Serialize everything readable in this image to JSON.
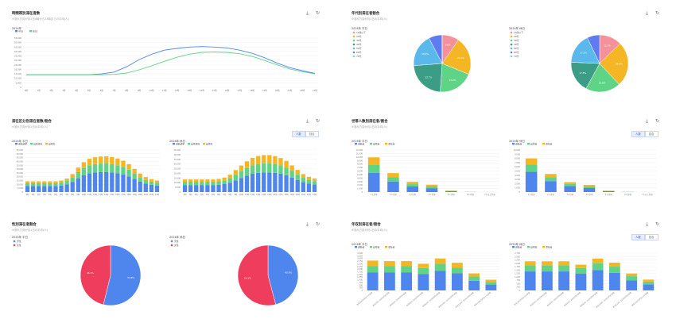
{
  "colors": {
    "blue": "#4e86ee",
    "green": "#5fd487",
    "yellow": "#f5b626",
    "pink": "#f4919b",
    "teal": "#3c9d87",
    "sky": "#5bb8ea",
    "lightgreen": "#7ce3a5",
    "red": "#ee3d5d",
    "slateblue": "#5f7bf0"
  },
  "icons": {
    "download": "download-icon",
    "refresh": "refresh-icon"
  },
  "toggle": {
    "a": "人数",
    "b": "割合"
  },
  "panels": [
    {
      "title": "時間帯別滞在者数",
      "subtitle": "※流れ方向が月1日0時から23時までの平均(人)",
      "charts": [
        {
          "type": "line",
          "title": "2024年",
          "categories": [
            "0時",
            "1時",
            "2時",
            "3時",
            "4時",
            "5時",
            "6時",
            "7時",
            "8時",
            "9時",
            "10時",
            "11時",
            "12時",
            "13時",
            "14時",
            "15時",
            "16時",
            "17時",
            "18時",
            "19時",
            "20時",
            "21時",
            "22時",
            "23時"
          ],
          "yticks": [
            "55,000",
            "50,000",
            "45,000",
            "40,000",
            "35,000",
            "30,000",
            "25,000",
            "20,000",
            "15,000",
            "10,000",
            "5,000",
            "0"
          ],
          "ylim": [
            0,
            55000
          ],
          "series": [
            {
              "name": "平日",
              "color": "#4e86ee",
              "values": [
                14000,
                14000,
                14000,
                14000,
                14000,
                14000,
                15000,
                17000,
                23000,
                31000,
                37000,
                41500,
                43500,
                45000,
                45500,
                45000,
                44000,
                41500,
                38000,
                33000,
                27000,
                22000,
                18500,
                15500
              ]
            },
            {
              "name": "休日",
              "color": "#5fd487",
              "values": [
                14000,
                14000,
                14000,
                14000,
                14000,
                14000,
                14000,
                14500,
                16000,
                19500,
                24000,
                29000,
                33500,
                37000,
                39000,
                39500,
                39000,
                37500,
                34500,
                30000,
                25000,
                20500,
                17500,
                15000
              ]
            }
          ]
        }
      ]
    },
    {
      "title": "年代別滞在者割合",
      "subtitle": "※流れ方向が月1日の平均(人)",
      "legend": [
        "10歳以下",
        "20代",
        "30代",
        "40代",
        "50代",
        "60代",
        "70代"
      ],
      "charts": [
        {
          "type": "pie",
          "title": "2024年 平日",
          "labels": [
            "10歳以下",
            "20代",
            "30代",
            "40代",
            "50代",
            "60代",
            "70代"
          ],
          "values": [
            9.6,
            21.6,
            19.9,
            22.7,
            18.6,
            7.5,
            0.1
          ],
          "value_labels": [
            "9.6%",
            "21.6%",
            "19.9%",
            "22.7%",
            "18.6%",
            "",
            ""
          ],
          "colors": [
            "#f4919b",
            "#f5b626",
            "#5fd487",
            "#3c9d87",
            "#5bb8ea",
            "#5f7bf0",
            "#7ce3a5"
          ]
        },
        {
          "type": "pie",
          "title": "2024年 休日",
          "labels": [
            "10歳以下",
            "20代",
            "30代",
            "40代",
            "50代",
            "60代",
            "70代"
          ],
          "values": [
            12.7,
            25.4,
            19.8,
            17.8,
            17.2,
            7.1,
            0.0
          ],
          "value_labels": [
            "12.7%",
            "25.4%",
            "19.8%",
            "17.8%",
            "17.2%",
            "",
            ""
          ],
          "colors": [
            "#f4919b",
            "#f5b626",
            "#5fd487",
            "#3c9d87",
            "#5bb8ea",
            "#5f7bf0",
            "#7ce3a5"
          ]
        }
      ]
    },
    {
      "title": "滞在区分別滞在者数/割合",
      "subtitle": "※流れ方向が月1日の平均(人)",
      "legend": [
        "通勤通学",
        "自宅滞在",
        "自宅外"
      ],
      "charts": [
        {
          "type": "stacked-bar",
          "title": "2024年 平日",
          "yticks": [
            "55,000",
            "50,000",
            "45,000",
            "40,000",
            "35,000",
            "30,000",
            "25,000",
            "20,000",
            "15,000",
            "10,000",
            "5,000",
            "0"
          ],
          "ymax": 55000,
          "categories": [
            "0時",
            "1時",
            "2時",
            "3時",
            "4時",
            "5時",
            "6時",
            "7時",
            "8時",
            "9時",
            "10時",
            "11時",
            "12時",
            "13時",
            "14時",
            "15時",
            "16時",
            "17時",
            "18時",
            "19時",
            "20時",
            "21時",
            "22時",
            "23時"
          ],
          "series": [
            {
              "name": "通勤通学",
              "values": [
                8000,
                8000,
                8000,
                8000,
                8000,
                8000,
                8500,
                10000,
                13000,
                18000,
                22000,
                24500,
                25500,
                26000,
                26000,
                25500,
                24500,
                23000,
                20500,
                17000,
                13500,
                11000,
                9500,
                8500
              ]
            },
            {
              "name": "自宅滞在",
              "values": [
                3500,
                3500,
                3500,
                3500,
                3500,
                3500,
                3800,
                4500,
                6000,
                8000,
                9500,
                10500,
                11000,
                11200,
                11300,
                11000,
                10500,
                9800,
                8800,
                7300,
                5900,
                4800,
                4100,
                3700
              ]
            },
            {
              "name": "自宅外",
              "values": [
                2500,
                2500,
                2500,
                2500,
                2500,
                2500,
                2700,
                3200,
                4500,
                6000,
                7500,
                8500,
                9000,
                9300,
                9500,
                9300,
                8800,
                8200,
                7200,
                6000,
                4800,
                3800,
                3200,
                2800
              ]
            }
          ]
        },
        {
          "type": "stacked-bar",
          "title": "2024年 休日",
          "yticks": [
            "45,000",
            "40,000",
            "35,000",
            "30,000",
            "25,000",
            "20,000",
            "15,000",
            "10,000",
            "5,000",
            "0"
          ],
          "ymax": 45000,
          "categories": [
            "0時",
            "1時",
            "2時",
            "3時",
            "4時",
            "5時",
            "6時",
            "7時",
            "8時",
            "9時",
            "10時",
            "11時",
            "12時",
            "13時",
            "14時",
            "15時",
            "16時",
            "17時",
            "18時",
            "19時",
            "20時",
            "21時",
            "22時",
            "23時"
          ],
          "series": [
            {
              "name": "通勤通学",
              "values": [
                7500,
                7500,
                7500,
                7500,
                7500,
                7500,
                7800,
                8500,
                10000,
                12500,
                15000,
                17500,
                19500,
                20500,
                21000,
                21000,
                20500,
                19500,
                18000,
                15500,
                13000,
                10500,
                9000,
                8000
              ]
            },
            {
              "name": "自宅滞在",
              "values": [
                3500,
                3500,
                3500,
                3500,
                3500,
                3500,
                3600,
                4000,
                4800,
                6000,
                7200,
                8200,
                9000,
                9500,
                9800,
                9800,
                9500,
                9000,
                8200,
                7000,
                5800,
                4800,
                4100,
                3700
              ]
            },
            {
              "name": "自宅外",
              "values": [
                2500,
                2500,
                2500,
                2500,
                2500,
                2500,
                2600,
                3000,
                3800,
                5000,
                6200,
                7200,
                8000,
                8500,
                8700,
                8700,
                8400,
                7900,
                7100,
                6000,
                4900,
                3900,
                3200,
                2800
              ]
            }
          ]
        }
      ]
    },
    {
      "title": "世帯人数別滞在者/割合",
      "subtitle": "※流れ方向が月1日の平均(人)",
      "legend": [
        "通勤者",
        "自宅者",
        "滞在者"
      ],
      "charts": [
        {
          "type": "stacked-bar",
          "title": "2024年 平日",
          "yticks": [
            "12,000",
            "11,000",
            "10,000",
            "9,000",
            "8,000",
            "7,000",
            "6,000",
            "5,000",
            "4,000",
            "3,000",
            "2,000",
            "1,000",
            "0"
          ],
          "ymax": 12000,
          "categories": [
            "1人世帯",
            "2人世帯",
            "3人世帯",
            "4人世帯",
            "5人世帯",
            "6人世帯",
            "7人以上世帯"
          ],
          "series": [
            {
              "name": "通勤者",
              "values": [
                5500,
                3000,
                1600,
                1100,
                250,
                30,
                10
              ]
            },
            {
              "name": "自宅者",
              "values": [
                2200,
                1200,
                650,
                500,
                80,
                10,
                0
              ]
            },
            {
              "name": "滞在者",
              "values": [
                2200,
                1200,
                650,
                500,
                80,
                10,
                0
              ]
            }
          ]
        },
        {
          "type": "stacked-bar",
          "title": "2024年 休日",
          "yticks": [
            "10,000",
            "9,000",
            "8,000",
            "7,000",
            "6,000",
            "5,000",
            "4,000",
            "3,000",
            "2,000",
            "1,000",
            "0"
          ],
          "ymax": 10000,
          "categories": [
            "1人世帯",
            "2人世帯",
            "3人世帯",
            "4人世帯",
            "5人世帯",
            "6人世帯",
            "7人以上世帯"
          ],
          "series": [
            {
              "name": "通勤者",
              "values": [
                4800,
                2600,
                1400,
                950,
                200,
                30,
                10
              ]
            },
            {
              "name": "自宅者",
              "values": [
                1700,
                900,
                500,
                400,
                70,
                10,
                0
              ]
            },
            {
              "name": "滞在者",
              "values": [
                1500,
                800,
                450,
                350,
                60,
                10,
                0
              ]
            }
          ]
        }
      ]
    },
    {
      "title": "性別滞在者割合",
      "subtitle": "※流れ方向が月1日の平均(人)",
      "legend": [
        "男性",
        "女性"
      ],
      "charts": [
        {
          "type": "pie",
          "title": "2024年 平日",
          "labels": [
            "男性",
            "女性"
          ],
          "values": [
            53.8,
            46.2
          ],
          "value_labels": [
            "53.8%",
            "46.2%"
          ],
          "colors": [
            "#4e86ee",
            "#ee3d5d"
          ]
        },
        {
          "type": "pie",
          "title": "2024年 休日",
          "labels": [
            "男性",
            "女性"
          ],
          "values": [
            45.9,
            54.1
          ],
          "value_labels": [
            "45.9%",
            "54.1%"
          ],
          "colors": [
            "#4e86ee",
            "#ee3d5d"
          ]
        }
      ]
    },
    {
      "title": "年収別滞在者/割合",
      "subtitle": "※流れ方向が月1日の平均(人)",
      "legend": [
        "通勤者",
        "自宅者",
        "滞在者"
      ],
      "charts": [
        {
          "type": "stacked-bar",
          "title": "2024年 平日",
          "yticks": [
            "3,500",
            "3,250",
            "3,000",
            "2,750",
            "2,500",
            "2,250",
            "2,000",
            "1,750",
            "1,500",
            "1,250",
            "1,000",
            "750",
            "500",
            "250",
            "0"
          ],
          "ymax": 3500,
          "categories": [
            "年収200万円以下の世帯",
            "年収200~400万円の世帯",
            "年収400~600万円の世帯",
            "年収600~800万円の世帯",
            "年収800~1000万円の世帯",
            "年収1000~1200万円の世帯",
            "年収1200~1500万円の世帯",
            "年収1500万円以上の世帯"
          ],
          "series": [
            {
              "name": "通勤者",
              "values": [
                1700,
                1700,
                1700,
                1550,
                1850,
                1600,
                900,
                550
              ]
            },
            {
              "name": "自宅者",
              "values": [
                600,
                600,
                600,
                550,
                650,
                550,
                400,
                250
              ]
            },
            {
              "name": "滞在者",
              "values": [
                500,
                450,
                450,
                400,
                500,
                450,
                300,
                200
              ]
            }
          ]
        },
        {
          "type": "stacked-bar",
          "title": "2024年 休日",
          "yticks": [
            "2,750",
            "2,500",
            "2,250",
            "2,000",
            "1,750",
            "1,500",
            "1,250",
            "1,000",
            "750",
            "500",
            "250",
            "0"
          ],
          "ymax": 2750,
          "categories": [
            "年収200万円以下の世帯",
            "年収200~400万円の世帯",
            "年収400~600万円の世帯",
            "年収600~800万円の世帯",
            "年収800~1000万円の世帯",
            "年収1000~1200万円の世帯",
            "年収1200~1500万円の世帯",
            "年収1500万円以上の世帯"
          ],
          "series": [
            {
              "name": "通勤者",
              "values": [
                1400,
                1400,
                1400,
                1250,
                1500,
                1300,
                750,
                450
              ]
            },
            {
              "name": "自宅者",
              "values": [
                450,
                450,
                450,
                400,
                500,
                450,
                300,
                200
              ]
            },
            {
              "name": "滞在者",
              "values": [
                300,
                300,
                300,
                250,
                350,
                300,
                200,
                150
              ]
            }
          ]
        }
      ]
    }
  ]
}
